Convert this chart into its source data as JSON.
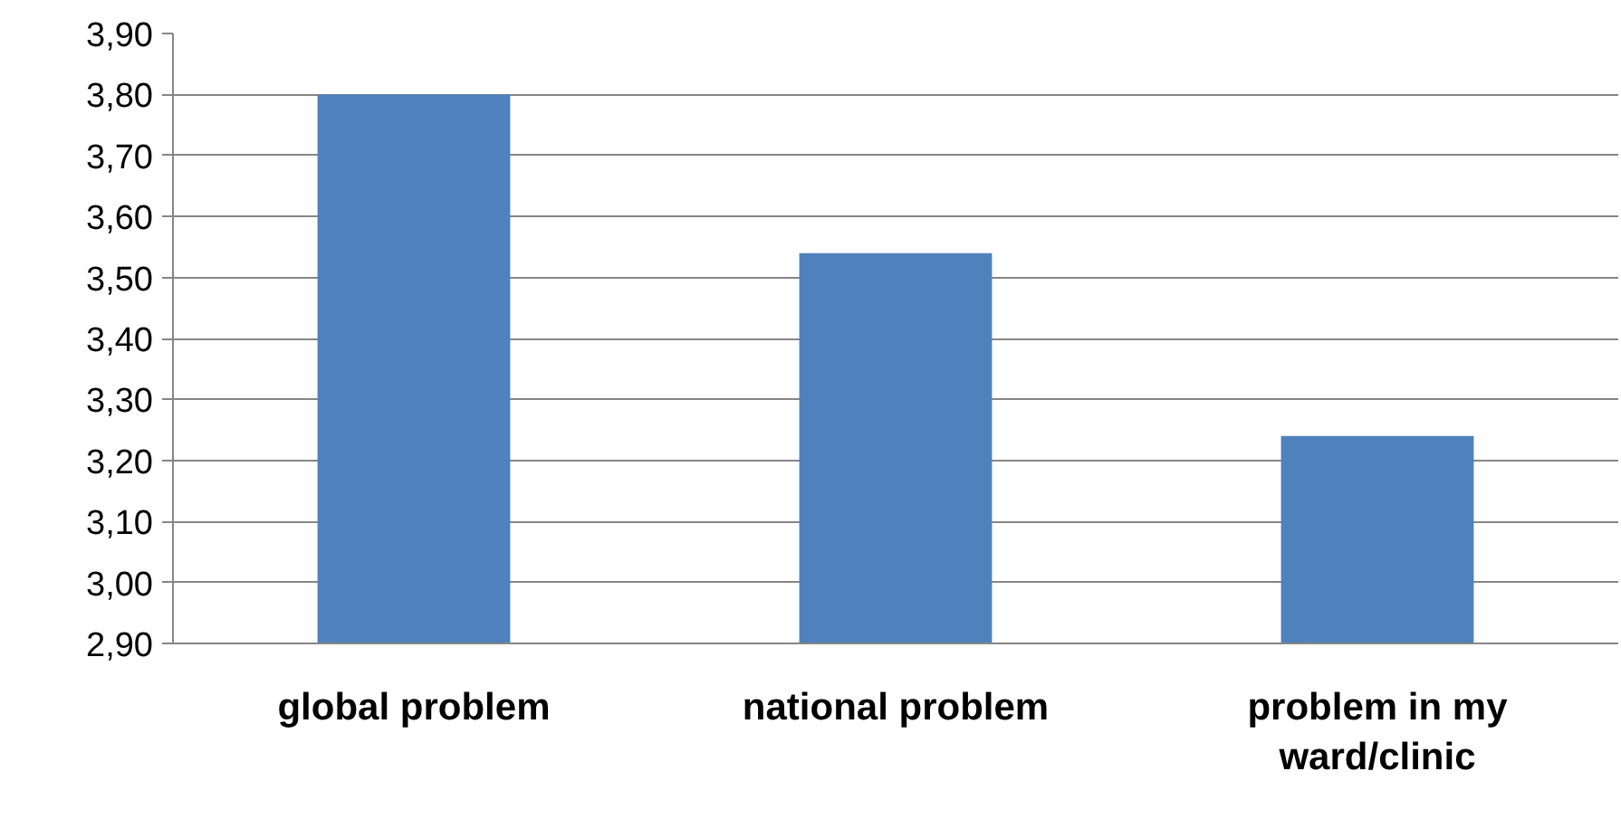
{
  "chart_data": {
    "type": "bar",
    "categories": [
      "global problem",
      "national problem",
      "problem in my ward/clinic"
    ],
    "values": [
      3.8,
      3.54,
      3.24
    ],
    "color": "#4f81bd",
    "ylim": [
      2.9,
      3.9
    ],
    "yticks": [
      {
        "value": 2.9,
        "label": "2,90"
      },
      {
        "value": 3.0,
        "label": "3,00"
      },
      {
        "value": 3.1,
        "label": "3,10"
      },
      {
        "value": 3.2,
        "label": "3,20"
      },
      {
        "value": 3.3,
        "label": "3,30"
      },
      {
        "value": 3.4,
        "label": "3,40"
      },
      {
        "value": 3.5,
        "label": "3,50"
      },
      {
        "value": 3.6,
        "label": "3,60"
      },
      {
        "value": 3.7,
        "label": "3,70"
      },
      {
        "value": 3.8,
        "label": "3,80"
      },
      {
        "value": 3.9,
        "label": "3,90"
      }
    ],
    "grid": "y"
  }
}
